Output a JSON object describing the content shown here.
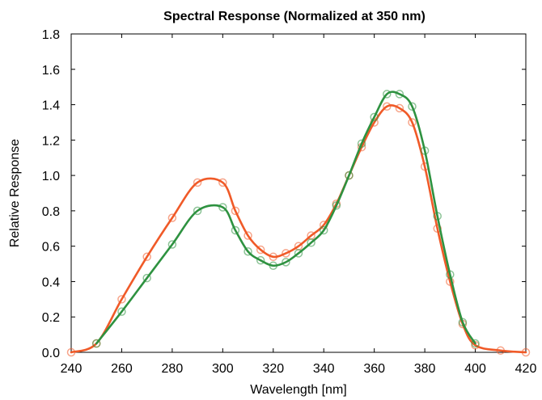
{
  "chart_data": {
    "type": "line",
    "title": "Spectral Response (Normalized at 350 nm)",
    "xlabel": "Wavelength [nm]",
    "ylabel": "Relative Response",
    "xlim": [
      240,
      420
    ],
    "ylim": [
      0,
      1.8
    ],
    "xticks": [
      240,
      260,
      280,
      300,
      320,
      340,
      360,
      380,
      400,
      420
    ],
    "xtick_labels": [
      "240",
      "260",
      "280",
      "300",
      "320",
      "340",
      "360",
      "380",
      "400",
      "420"
    ],
    "yticks": [
      0,
      0.2,
      0.4,
      0.6,
      0.8,
      1.0,
      1.2,
      1.4,
      1.6,
      1.8
    ],
    "ytick_labels": [
      "0.0",
      "0.2",
      "0.4",
      "0.6",
      "0.8",
      "1.0",
      "1.2",
      "1.4",
      "1.6",
      "1.8"
    ],
    "grid": false,
    "series": [
      {
        "color": "#f05a28",
        "points": [
          [
            240,
            0.0
          ],
          [
            250,
            0.05
          ],
          [
            260,
            0.3
          ],
          [
            270,
            0.54
          ],
          [
            280,
            0.76
          ],
          [
            290,
            0.96
          ],
          [
            300,
            0.96
          ],
          [
            305,
            0.8
          ],
          [
            310,
            0.66
          ],
          [
            315,
            0.58
          ],
          [
            320,
            0.54
          ],
          [
            325,
            0.56
          ],
          [
            330,
            0.6
          ],
          [
            335,
            0.66
          ],
          [
            340,
            0.72
          ],
          [
            345,
            0.84
          ],
          [
            350,
            1.0
          ],
          [
            355,
            1.16
          ],
          [
            360,
            1.3
          ],
          [
            365,
            1.39
          ],
          [
            370,
            1.38
          ],
          [
            375,
            1.3
          ],
          [
            380,
            1.05
          ],
          [
            385,
            0.7
          ],
          [
            390,
            0.4
          ],
          [
            395,
            0.16
          ],
          [
            400,
            0.04
          ],
          [
            410,
            0.01
          ],
          [
            420,
            0.0
          ]
        ]
      },
      {
        "color": "#2e9240",
        "points": [
          [
            250,
            0.05
          ],
          [
            260,
            0.23
          ],
          [
            270,
            0.42
          ],
          [
            280,
            0.61
          ],
          [
            290,
            0.8
          ],
          [
            300,
            0.82
          ],
          [
            305,
            0.69
          ],
          [
            310,
            0.57
          ],
          [
            315,
            0.52
          ],
          [
            320,
            0.49
          ],
          [
            325,
            0.51
          ],
          [
            330,
            0.56
          ],
          [
            335,
            0.62
          ],
          [
            340,
            0.69
          ],
          [
            345,
            0.83
          ],
          [
            350,
            1.0
          ],
          [
            355,
            1.18
          ],
          [
            360,
            1.33
          ],
          [
            365,
            1.46
          ],
          [
            370,
            1.46
          ],
          [
            375,
            1.39
          ],
          [
            380,
            1.14
          ],
          [
            385,
            0.77
          ],
          [
            390,
            0.44
          ],
          [
            395,
            0.17
          ],
          [
            400,
            0.05
          ]
        ]
      }
    ]
  }
}
